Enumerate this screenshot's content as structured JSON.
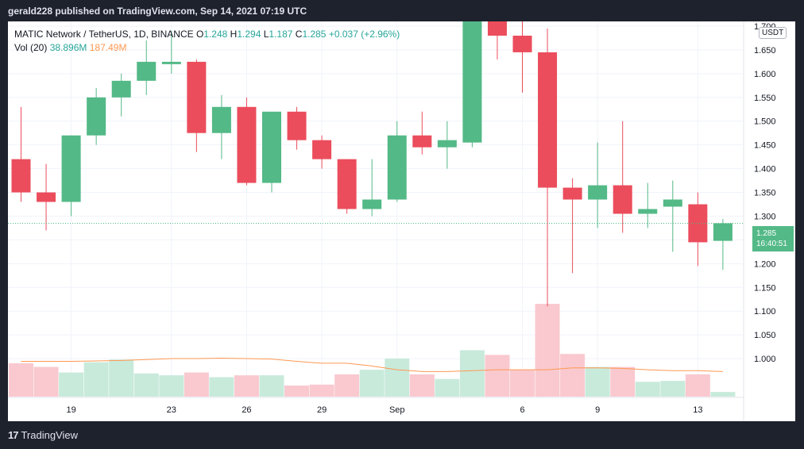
{
  "header": {
    "published": "gerald228 published on TradingView.com, Sep 14, 2021 07:19 UTC"
  },
  "legend": {
    "symbol": "MATIC Network / TetherUS, 1D, BINANCE",
    "o_label": "O",
    "o_val": "1.248",
    "h_label": "H",
    "h_val": "1.294",
    "l_label": "L",
    "l_val": "1.187",
    "c_label": "C",
    "c_val": "1.285",
    "change": "+0.037 (+2.96%)",
    "vol_label": "Vol (20)",
    "vol_val": "38.896M",
    "vol_ma": "187.49M"
  },
  "axis": {
    "currency": "USDT",
    "last_price": "1.285",
    "countdown": "16:40:51"
  },
  "footer": {
    "brand": "TradingView",
    "logo": "17"
  },
  "colors": {
    "up": "#53b987",
    "down": "#eb4d5c",
    "vol_up": "#c8eadb",
    "vol_down": "#f9c9cf",
    "ma": "#ff9850",
    "grid": "#f0f3fa"
  },
  "chart_data": {
    "type": "candlestick",
    "title": "MATIC Network / TetherUS, 1D, BINANCE",
    "ylim": [
      0.92,
      1.71
    ],
    "y_ticks": [
      1.0,
      1.05,
      1.1,
      1.15,
      1.2,
      1.25,
      1.3,
      1.35,
      1.4,
      1.45,
      1.5,
      1.55,
      1.6,
      1.65,
      1.7
    ],
    "x_ticks": [
      {
        "label": "19",
        "index": 2
      },
      {
        "label": "23",
        "index": 6
      },
      {
        "label": "26",
        "index": 9
      },
      {
        "label": "29",
        "index": 12
      },
      {
        "label": "Sep",
        "index": 15
      },
      {
        "label": "6",
        "index": 20
      },
      {
        "label": "9",
        "index": 23
      },
      {
        "label": "13",
        "index": 27
      }
    ],
    "candles": [
      {
        "o": 1.42,
        "h": 1.53,
        "l": 1.33,
        "c": 1.35
      },
      {
        "o": 1.35,
        "h": 1.41,
        "l": 1.27,
        "c": 1.33
      },
      {
        "o": 1.33,
        "h": 1.47,
        "l": 1.3,
        "c": 1.47
      },
      {
        "o": 1.47,
        "h": 1.57,
        "l": 1.45,
        "c": 1.55
      },
      {
        "o": 1.55,
        "h": 1.6,
        "l": 1.51,
        "c": 1.585
      },
      {
        "o": 1.585,
        "h": 1.67,
        "l": 1.555,
        "c": 1.625
      },
      {
        "o": 1.62,
        "h": 1.69,
        "l": 1.6,
        "c": 1.625
      },
      {
        "o": 1.625,
        "h": 1.63,
        "l": 1.435,
        "c": 1.475
      },
      {
        "o": 1.475,
        "h": 1.555,
        "l": 1.42,
        "c": 1.53
      },
      {
        "o": 1.53,
        "h": 1.55,
        "l": 1.365,
        "c": 1.37
      },
      {
        "o": 1.37,
        "h": 1.52,
        "l": 1.35,
        "c": 1.52
      },
      {
        "o": 1.52,
        "h": 1.53,
        "l": 1.44,
        "c": 1.46
      },
      {
        "o": 1.46,
        "h": 1.47,
        "l": 1.4,
        "c": 1.42
      },
      {
        "o": 1.42,
        "h": 1.42,
        "l": 1.305,
        "c": 1.315
      },
      {
        "o": 1.315,
        "h": 1.42,
        "l": 1.3,
        "c": 1.335
      },
      {
        "o": 1.335,
        "h": 1.5,
        "l": 1.33,
        "c": 1.47
      },
      {
        "o": 1.47,
        "h": 1.52,
        "l": 1.43,
        "c": 1.445
      },
      {
        "o": 1.445,
        "h": 1.5,
        "l": 1.4,
        "c": 1.46
      },
      {
        "o": 1.455,
        "h": 1.75,
        "l": 1.445,
        "c": 1.72
      },
      {
        "o": 1.72,
        "h": 1.72,
        "l": 1.63,
        "c": 1.68
      },
      {
        "o": 1.68,
        "h": 1.71,
        "l": 1.56,
        "c": 1.645
      },
      {
        "o": 1.645,
        "h": 1.695,
        "l": 1.11,
        "c": 1.36
      },
      {
        "o": 1.36,
        "h": 1.38,
        "l": 1.18,
        "c": 1.335
      },
      {
        "o": 1.335,
        "h": 1.455,
        "l": 1.275,
        "c": 1.365
      },
      {
        "o": 1.365,
        "h": 1.5,
        "l": 1.265,
        "c": 1.305
      },
      {
        "o": 1.305,
        "h": 1.37,
        "l": 1.275,
        "c": 1.315
      },
      {
        "o": 1.32,
        "h": 1.375,
        "l": 1.225,
        "c": 1.335
      },
      {
        "o": 1.325,
        "h": 1.35,
        "l": 1.195,
        "c": 1.245
      },
      {
        "o": 1.248,
        "h": 1.294,
        "l": 1.187,
        "c": 1.285
      }
    ],
    "volume": [
      0.36,
      0.32,
      0.26,
      0.37,
      0.4,
      0.25,
      0.23,
      0.26,
      0.21,
      0.23,
      0.23,
      0.12,
      0.13,
      0.24,
      0.29,
      0.41,
      0.24,
      0.19,
      0.5,
      0.45,
      0.29,
      1.0,
      0.46,
      0.32,
      0.32,
      0.16,
      0.17,
      0.24,
      0.05
    ],
    "volume_ma": [
      0.38,
      0.38,
      0.38,
      0.385,
      0.39,
      0.4,
      0.41,
      0.41,
      0.415,
      0.41,
      0.405,
      0.38,
      0.36,
      0.36,
      0.33,
      0.29,
      0.27,
      0.27,
      0.28,
      0.29,
      0.29,
      0.29,
      0.31,
      0.31,
      0.305,
      0.29,
      0.28,
      0.28,
      0.27
    ]
  }
}
